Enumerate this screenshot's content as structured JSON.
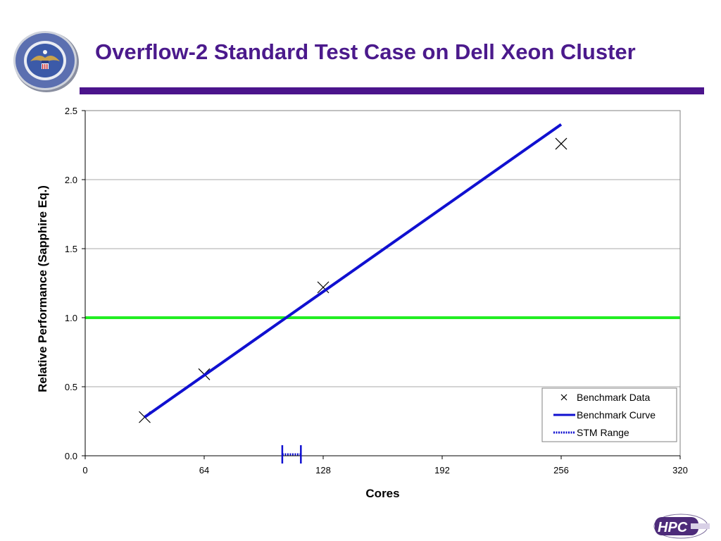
{
  "slide": {
    "title": "Overflow-2 Standard Test Case on Dell Xeon Cluster",
    "colors": {
      "title": "#4b1a8c",
      "rule": "#4b148c"
    },
    "logos": [
      "department-of-defense-seal",
      "hpc-modernization-program-logo"
    ]
  },
  "chart_data": {
    "type": "line",
    "xlabel": "Cores",
    "ylabel": "Relative Performance (Sapphire Eq.)",
    "xlim": [
      0,
      320
    ],
    "ylim": [
      0,
      2.5
    ],
    "xticks": [
      0,
      64,
      128,
      192,
      256,
      320
    ],
    "yticks": [
      "0.0",
      "0.5",
      "1.0",
      "1.5",
      "2.0",
      "2.5"
    ],
    "grid": "horizontal",
    "legend_position": "bottom-right",
    "series": [
      {
        "name": "Benchmark Data",
        "style": "markers",
        "marker": "x",
        "color": "#000000",
        "points": [
          [
            32,
            0.28
          ],
          [
            64,
            0.59
          ],
          [
            128,
            1.22
          ],
          [
            256,
            2.26
          ]
        ]
      },
      {
        "name": "Benchmark Curve",
        "style": "line",
        "color": "#1010d0",
        "points": [
          [
            32,
            0.28
          ],
          [
            256,
            2.4
          ]
        ]
      },
      {
        "name": "STM Range",
        "style": "range",
        "color": "#1010d0",
        "range": [
          106,
          116
        ],
        "y": 0
      }
    ],
    "reference_line": {
      "y": 1.0,
      "color": "#22ee22"
    }
  }
}
